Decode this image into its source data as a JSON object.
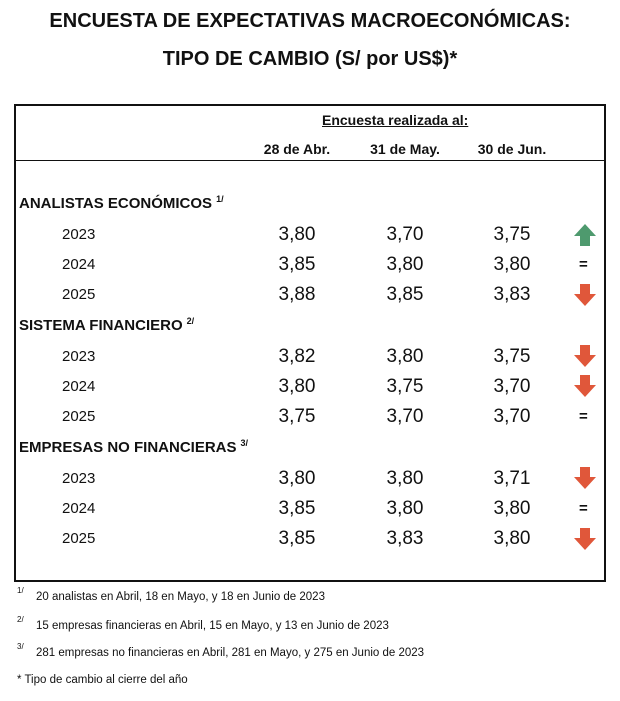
{
  "title": {
    "line1": "ENCUESTA DE EXPECTATIVAS MACROECONÓMICAS:",
    "line2": "TIPO DE CAMBIO (S/ por US$)*"
  },
  "table": {
    "header": "Encuesta realizada al:",
    "columns": [
      "28 de Abr.",
      "31 de May.",
      "30 de Jun."
    ],
    "groups": [
      {
        "name": "ANALISTAS ECONÓMICOS",
        "note": "1/",
        "rows": [
          {
            "year": "2023",
            "values": [
              "3,80",
              "3,70",
              "3,75"
            ]
          },
          {
            "year": "2024",
            "values": [
              "3,85",
              "3,80",
              "3,80"
            ],
            "trend": "="
          },
          {
            "year": "2025",
            "values": [
              "3,88",
              "3,85",
              "3,83"
            ]
          }
        ]
      },
      {
        "name": "SISTEMA FINANCIERO",
        "note": "2/",
        "rows": [
          {
            "year": "2023",
            "values": [
              "3,82",
              "3,80",
              "3,75"
            ]
          },
          {
            "year": "2024",
            "values": [
              "3,80",
              "3,75",
              "3,70"
            ]
          },
          {
            "year": "2025",
            "values": [
              "3,75",
              "3,70",
              "3,70"
            ],
            "trend": "="
          }
        ]
      },
      {
        "name": "EMPRESAS NO FINANCIERAS",
        "note": "3/",
        "rows": [
          {
            "year": "2023",
            "values": [
              "3,80",
              "3,80",
              "3,71"
            ]
          },
          {
            "year": "2024",
            "values": [
              "3,85",
              "3,80",
              "3,80"
            ],
            "trend": "="
          },
          {
            "year": "2025",
            "values": [
              "3,85",
              "3,83",
              "3,80"
            ]
          }
        ]
      }
    ]
  },
  "footnotes": [
    {
      "marker": "1/",
      "text": "20 analistas en Abril, 18 en Mayo, y 18 en Junio de 2023"
    },
    {
      "marker": "2/",
      "text": "15 empresas financieras en Abril, 15 en Mayo, y 13 en Junio de 2023"
    },
    {
      "marker": "3/",
      "text": "281 empresas no financieras en Abril, 281 en Mayo, y 275 en Junio de 2023"
    },
    {
      "text": "* Tipo de cambio al cierre del año"
    }
  ]
}
